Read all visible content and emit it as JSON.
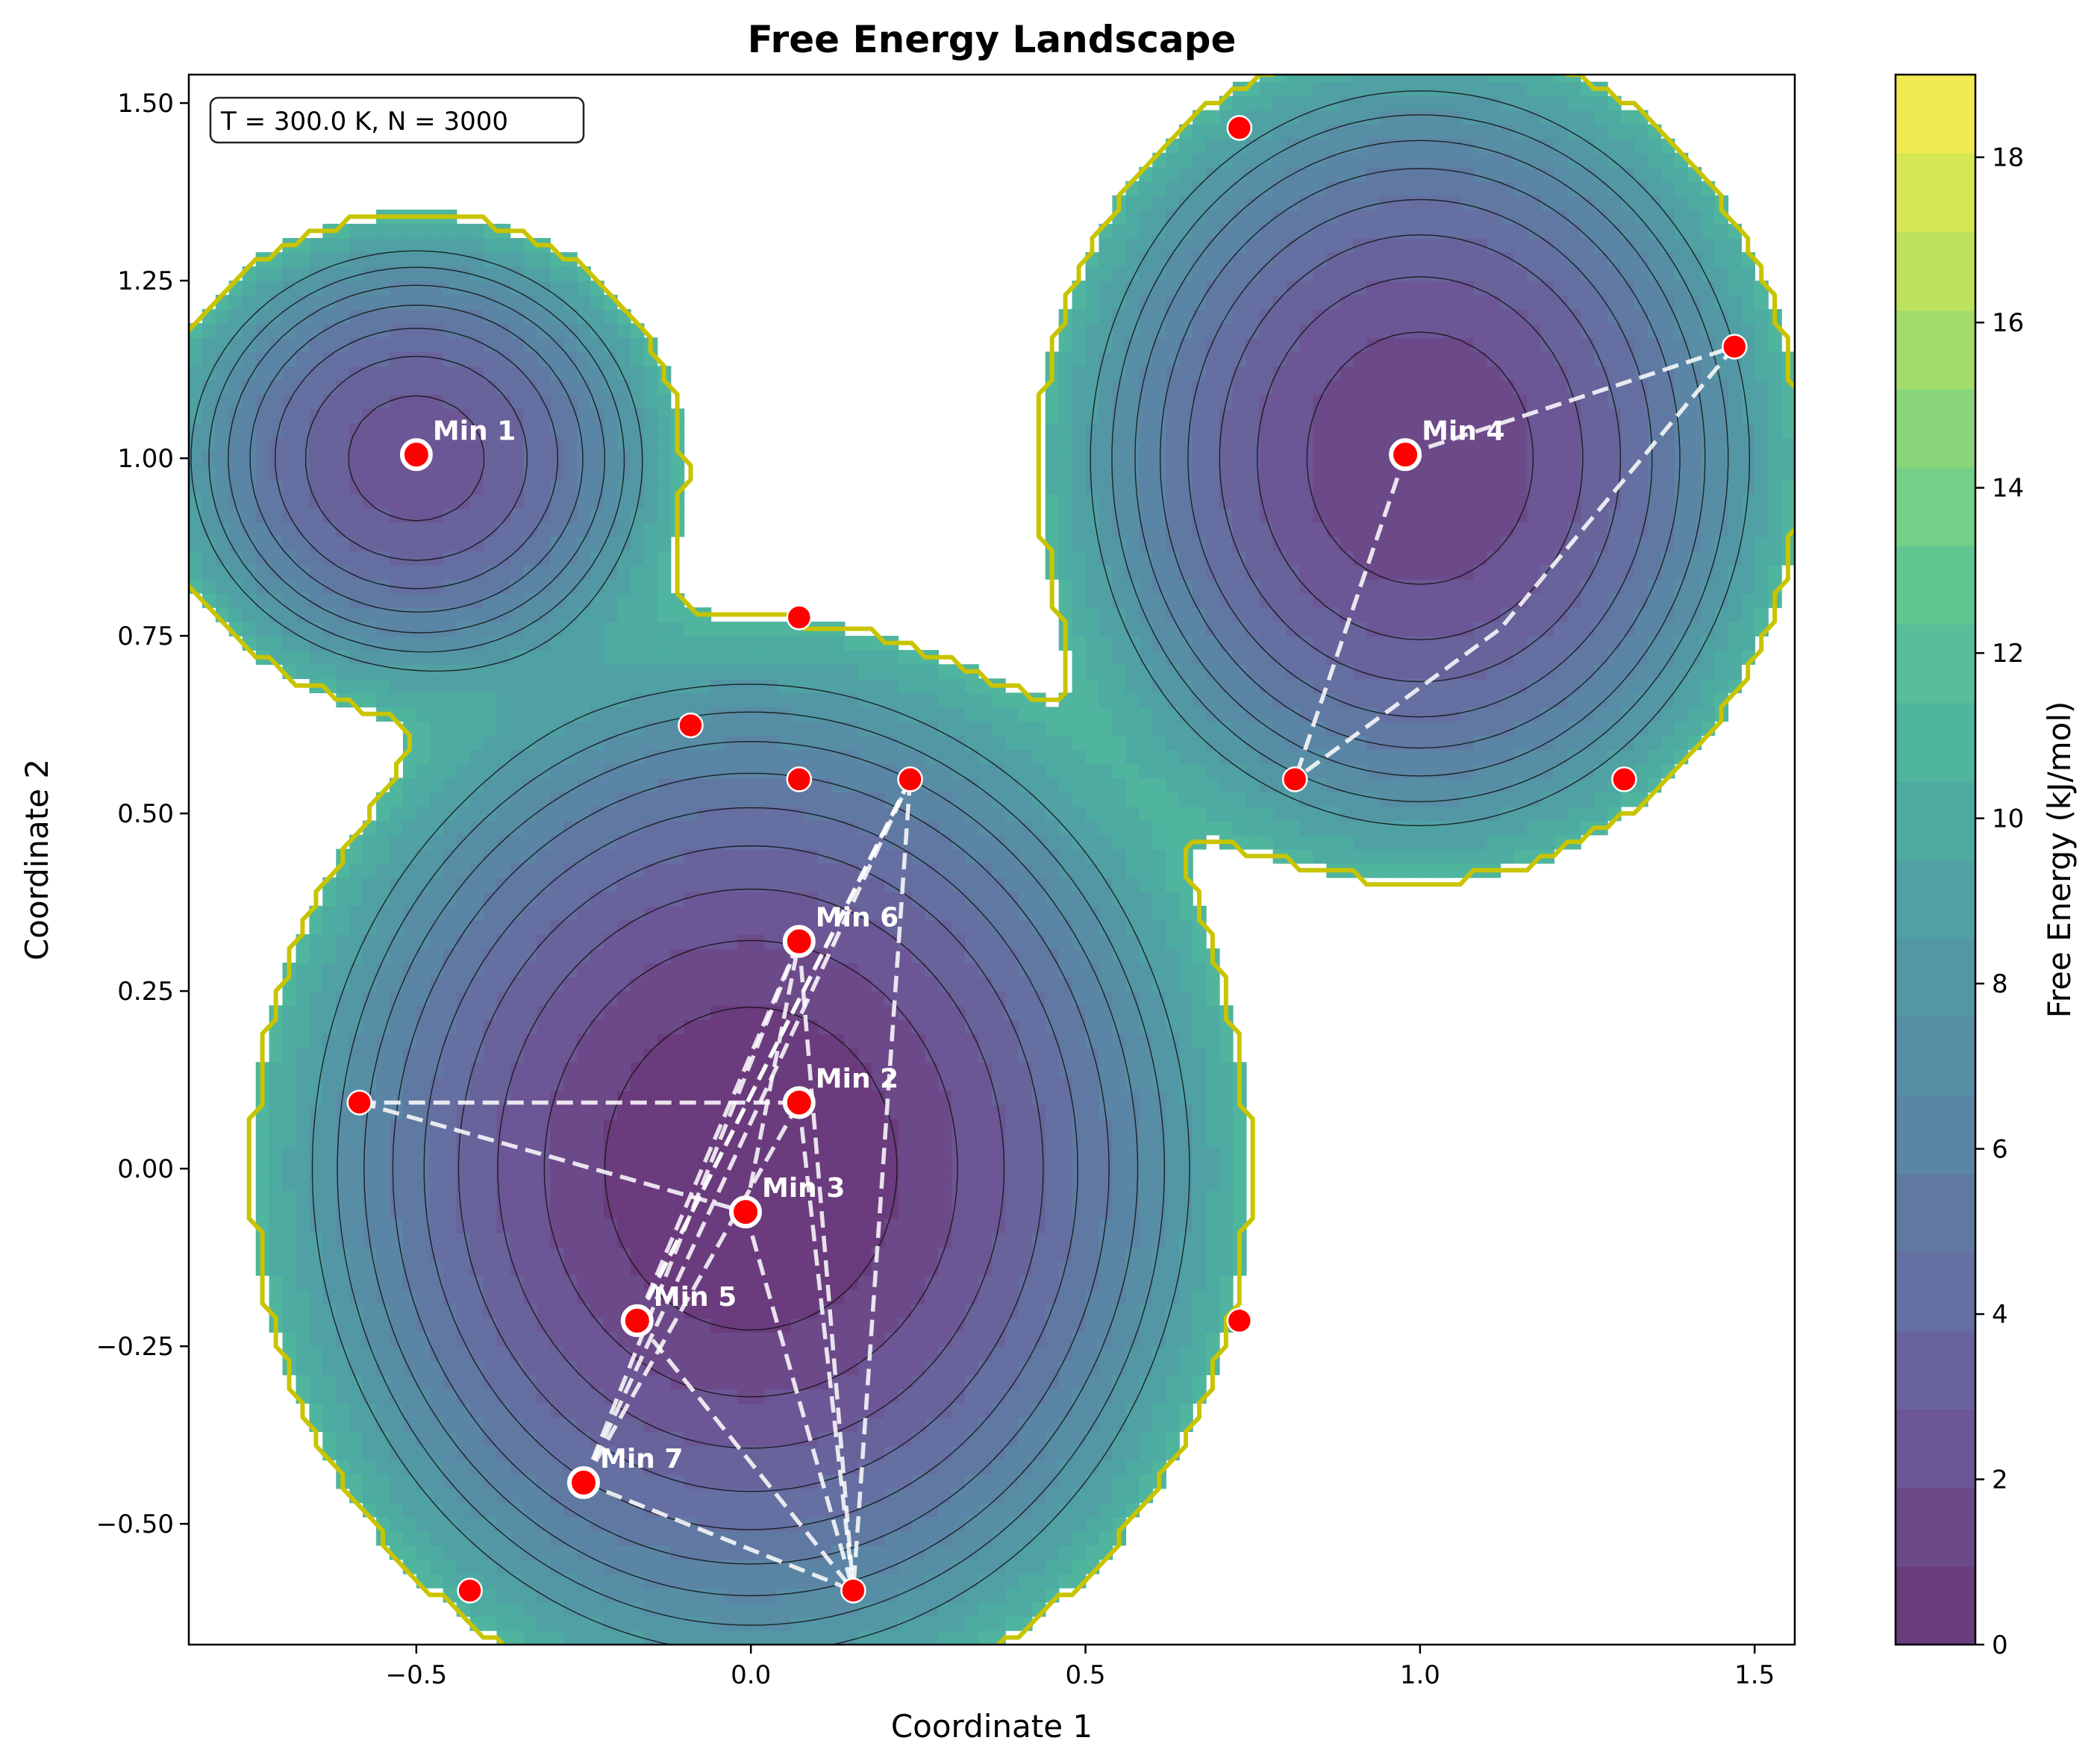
{
  "chart_data": {
    "type": "contour",
    "title": "Free Energy Landscape",
    "xlabel": "Coordinate 1",
    "ylabel": "Coordinate 2",
    "xlim": [
      -0.84,
      1.56
    ],
    "ylim": [
      -0.67,
      1.54
    ],
    "x_ticks": [
      -0.5,
      0.0,
      0.5,
      1.0,
      1.5
    ],
    "x_tick_labels": [
      "−0.5",
      "0.0",
      "0.5",
      "1.0",
      "1.5"
    ],
    "y_ticks": [
      -0.5,
      -0.25,
      0.0,
      0.25,
      0.5,
      0.75,
      1.0,
      1.25,
      1.5
    ],
    "y_tick_labels": [
      "−0.50",
      "−0.25",
      "0.00",
      "0.25",
      "0.50",
      "0.75",
      "1.00",
      "1.25",
      "1.50"
    ],
    "annotation": "T = 300.0 K, N = 3000",
    "colorbar": {
      "label": "Free Energy (kJ/mol)",
      "range": [
        0,
        19
      ],
      "ticks": [
        0,
        2,
        4,
        6,
        8,
        10,
        12,
        14,
        16,
        18
      ],
      "tick_labels": [
        "0",
        "2",
        "4",
        "6",
        "8",
        "10",
        "12",
        "14",
        "16",
        "18"
      ],
      "levels": 20,
      "colormap": "viridis"
    },
    "basins": [
      {
        "cx": -0.5,
        "cy": 1.0,
        "sx": 0.15,
        "sy": 0.13,
        "depth": 0.6
      },
      {
        "cx": 0.0,
        "cy": 0.0,
        "sx": 0.25,
        "sy": 0.26,
        "depth": 1.5
      },
      {
        "cx": 1.0,
        "cy": 1.0,
        "sx": 0.2,
        "sy": 0.21,
        "depth": 1.0
      }
    ],
    "minima": [
      {
        "label": "Min 1",
        "x": -0.5,
        "y": 1.005,
        "major": true
      },
      {
        "label": "Min 2",
        "x": 0.072,
        "y": 0.093,
        "major": true
      },
      {
        "label": "Min 3",
        "x": -0.008,
        "y": -0.061,
        "major": true
      },
      {
        "label": "Min 4",
        "x": 0.978,
        "y": 1.005,
        "major": true
      },
      {
        "label": "Min 5",
        "x": -0.17,
        "y": -0.214,
        "major": true
      },
      {
        "label": "Min 6",
        "x": 0.072,
        "y": 0.32,
        "major": true
      },
      {
        "label": "Min 7",
        "x": -0.25,
        "y": -0.442,
        "major": true
      }
    ],
    "other_points": [
      {
        "x": 0.73,
        "y": 1.465
      },
      {
        "x": 1.47,
        "y": 1.157
      },
      {
        "x": 0.072,
        "y": 0.776
      },
      {
        "x": -0.09,
        "y": 0.624
      },
      {
        "x": 0.072,
        "y": 0.548
      },
      {
        "x": 0.238,
        "y": 0.548
      },
      {
        "x": 0.813,
        "y": 0.548
      },
      {
        "x": 1.305,
        "y": 0.548
      },
      {
        "x": -0.585,
        "y": 0.093
      },
      {
        "x": 0.73,
        "y": -0.214
      },
      {
        "x": -0.42,
        "y": -0.594
      },
      {
        "x": 0.153,
        "y": -0.594
      }
    ],
    "paths": [
      [
        [
          0.978,
          1.005
        ],
        [
          1.47,
          1.157
        ]
      ],
      [
        [
          0.978,
          1.005
        ],
        [
          0.813,
          0.548
        ]
      ],
      [
        [
          1.47,
          1.157
        ],
        [
          1.12,
          0.76
        ],
        [
          0.813,
          0.548
        ]
      ],
      [
        [
          -0.585,
          0.093
        ],
        [
          0.072,
          0.093
        ]
      ],
      [
        [
          -0.585,
          0.093
        ],
        [
          -0.008,
          -0.061
        ]
      ],
      [
        [
          -0.25,
          -0.442
        ],
        [
          0.072,
          0.32
        ]
      ],
      [
        [
          -0.25,
          -0.442
        ],
        [
          0.072,
          0.093
        ]
      ],
      [
        [
          -0.25,
          -0.442
        ],
        [
          0.238,
          0.548
        ]
      ],
      [
        [
          -0.25,
          -0.442
        ],
        [
          0.153,
          -0.594
        ]
      ],
      [
        [
          -0.17,
          -0.214
        ],
        [
          0.072,
          0.32
        ]
      ],
      [
        [
          -0.17,
          -0.214
        ],
        [
          0.238,
          0.548
        ]
      ],
      [
        [
          -0.17,
          -0.214
        ],
        [
          0.153,
          -0.594
        ]
      ],
      [
        [
          -0.008,
          -0.061
        ],
        [
          0.072,
          0.32
        ]
      ],
      [
        [
          -0.008,
          -0.061
        ],
        [
          0.153,
          -0.594
        ]
      ],
      [
        [
          0.072,
          0.32
        ],
        [
          0.153,
          -0.594
        ]
      ],
      [
        [
          0.072,
          0.093
        ],
        [
          0.153,
          -0.594
        ]
      ],
      [
        [
          0.238,
          0.548
        ],
        [
          0.153,
          -0.594
        ]
      ],
      [
        [
          0.238,
          0.548
        ],
        [
          -0.17,
          -0.214
        ]
      ]
    ]
  }
}
